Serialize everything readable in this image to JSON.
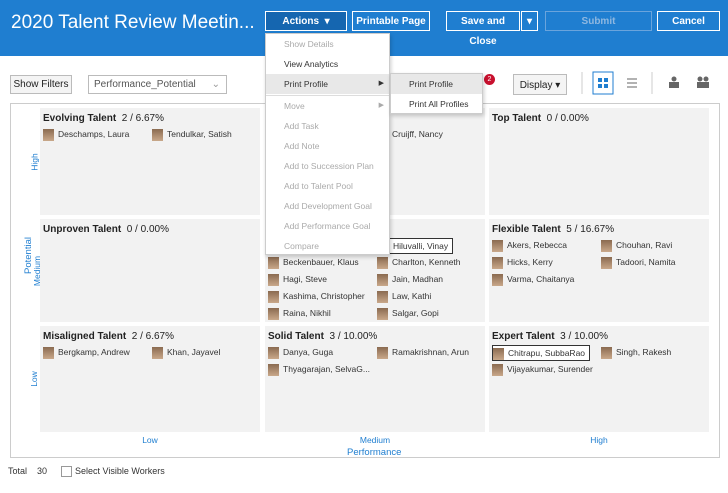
{
  "header": {
    "title": "2020 Talent Review Meetin...",
    "actions": "Actions",
    "printable_page": "Printable Page",
    "save_and_close": "Save and Close",
    "submit": "Submit",
    "cancel": "Cancel"
  },
  "toolbar": {
    "show_filters": "Show Filters",
    "view": "Performance_Potential",
    "badge": "2",
    "display": "Display"
  },
  "menu": {
    "items": [
      {
        "label": "Show Details",
        "disabled": true
      },
      {
        "label": "View Analytics"
      },
      {
        "label": "Print Profile",
        "hover": true,
        "submenu": true
      },
      {
        "label": "Move",
        "disabled": true,
        "submenu": true,
        "separator_before": true
      },
      {
        "label": "Add Task",
        "disabled": true
      },
      {
        "label": "Add Note",
        "disabled": true
      },
      {
        "label": "Add to Succession Plan",
        "disabled": true
      },
      {
        "label": "Add to Talent Pool",
        "disabled": true
      },
      {
        "label": "Add Development Goal",
        "disabled": true
      },
      {
        "label": "Add Performance Goal",
        "disabled": true
      },
      {
        "label": "Compare",
        "disabled": true
      }
    ]
  },
  "submenu": {
    "items": [
      "Print Profile",
      "Print All Profiles"
    ]
  },
  "grid": {
    "y_axis_label": "Potential",
    "x_axis_label": "Performance",
    "row_labels": [
      "High",
      "Medium",
      "Low"
    ],
    "column_labels": [
      "Low",
      "Medium",
      "High"
    ],
    "cells": [
      [
        {
          "title": "Evolving Talent",
          "stat": "2 / 6.67%",
          "workers": [
            {
              "name": "Deschamps, Laura"
            },
            {
              "name": "Tendulkar, Satish"
            }
          ]
        },
        {
          "workers": [
            null,
            {
              "name": "Cruijff, Nancy"
            }
          ]
        },
        {
          "title": "Top Talent",
          "stat": "0 / 0.00%",
          "workers": []
        }
      ],
      [
        {
          "title": "Unproven Talent",
          "stat": "0 / 0.00%",
          "workers": []
        },
        {
          "workers": [
            null,
            {
              "name": "Hiluvalli, Vinay",
              "selected": true
            },
            {
              "name": "Beckenbauer, Klaus"
            },
            {
              "name": "Charlton, Kenneth"
            },
            {
              "name": "Hagi, Steve"
            },
            {
              "name": "Jain, Madhan"
            },
            {
              "name": "Kashima, Christopher"
            },
            {
              "name": "Law, Kathi"
            },
            {
              "name": "Raina, Nikhil"
            },
            {
              "name": "Salgar, Gopi"
            }
          ]
        },
        {
          "title": "Flexible Talent",
          "stat": "5 / 16.67%",
          "workers": [
            {
              "name": "Akers, Rebecca"
            },
            {
              "name": "Chouhan, Ravi"
            },
            {
              "name": "Hicks, Kerry"
            },
            {
              "name": "Tadoori, Namita"
            },
            {
              "name": "Varma, Chaitanya"
            }
          ]
        }
      ],
      [
        {
          "title": "Misaligned Talent",
          "stat": "2 / 6.67%",
          "workers": [
            {
              "name": "Bergkamp, Andrew"
            },
            {
              "name": "Khan, Jayavel"
            }
          ]
        },
        {
          "title": "Solid Talent",
          "stat": "3 / 10.00%",
          "workers": [
            {
              "name": "Danya, Guga"
            },
            {
              "name": "Ramakrishnan, Arun"
            },
            {
              "name": "Thyagarajan, SelvaG..."
            }
          ]
        },
        {
          "title": "Expert Talent",
          "stat": "3 / 10.00%",
          "workers": [
            {
              "name": "Chitrapu, SubbaRao",
              "selected": true
            },
            {
              "name": "Singh, Rakesh"
            },
            {
              "name": "Vijayakumar, Surender"
            }
          ]
        }
      ]
    ]
  },
  "footer": {
    "total_label": "Total",
    "total": 30,
    "select_visible": "Select Visible Workers"
  }
}
